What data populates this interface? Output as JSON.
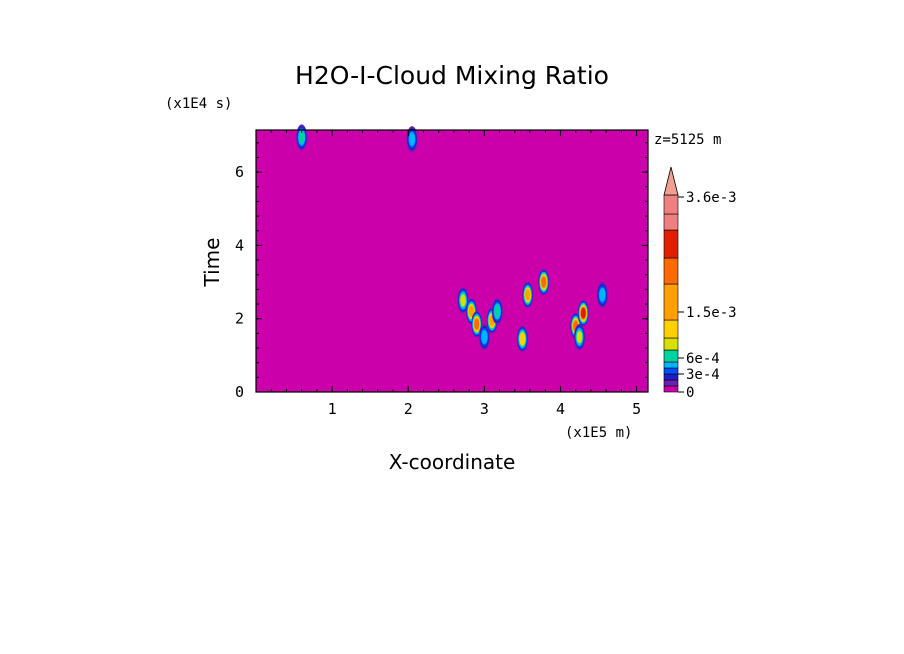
{
  "chart_data": {
    "type": "heatmap",
    "title": "H2O-I-Cloud Mixing Ratio",
    "xlabel": "X-coordinate",
    "ylabel": "Time",
    "x_unit_label": "(x1E5 m)",
    "y_unit_label": "(x1E4 s)",
    "level_label": "z=5125 m",
    "xlim": [
      0,
      5.15
    ],
    "ylim": [
      0,
      7.15
    ],
    "x_ticks": [
      1,
      2,
      3,
      4,
      5
    ],
    "y_ticks": [
      0,
      2,
      4,
      6
    ],
    "x_tick_labels": [
      "1",
      "2",
      "3",
      "4",
      "5"
    ],
    "y_tick_labels": [
      "0",
      "2",
      "4",
      "6"
    ],
    "background_value": 0,
    "colorbar": {
      "levels": [
        0,
        0.0001,
        0.0002,
        0.0003,
        0.0004,
        0.0005,
        0.0006,
        0.0009,
        0.0012,
        0.0015,
        0.0018,
        0.0024,
        0.003,
        0.0036
      ],
      "colors": [
        "#cc00aa",
        "#6a1fb5",
        "#1f1fc8",
        "#0050ff",
        "#00b4ff",
        "#00d2a0",
        "#d8e000",
        "#ffd000",
        "#ffa000",
        "#ff6a00",
        "#e02000",
        "#ef8080",
        "#ef8080",
        "#f0a090"
      ],
      "labels": [
        "0",
        "3e-4",
        "6e-4",
        "1.5e-3",
        "3.6e-3"
      ],
      "label_values": [
        0,
        0.0003,
        0.0006,
        0.0015,
        0.0036
      ],
      "extend": "max"
    },
    "features": [
      {
        "x": 0.6,
        "y": 6.95,
        "value": 0.0005
      },
      {
        "x": 2.05,
        "y": 6.9,
        "value": 0.0004
      },
      {
        "x": 2.72,
        "y": 2.5,
        "value": 0.0006
      },
      {
        "x": 2.83,
        "y": 2.2,
        "value": 0.0012
      },
      {
        "x": 2.9,
        "y": 1.85,
        "value": 0.0015
      },
      {
        "x": 3.0,
        "y": 1.5,
        "value": 0.0004
      },
      {
        "x": 3.1,
        "y": 1.95,
        "value": 0.0012
      },
      {
        "x": 3.17,
        "y": 2.2,
        "value": 0.0005
      },
      {
        "x": 3.5,
        "y": 1.45,
        "value": 0.0009
      },
      {
        "x": 3.57,
        "y": 2.65,
        "value": 0.0012
      },
      {
        "x": 3.78,
        "y": 3.0,
        "value": 0.0015
      },
      {
        "x": 4.2,
        "y": 1.8,
        "value": 0.0015
      },
      {
        "x": 4.3,
        "y": 2.15,
        "value": 0.0018
      },
      {
        "x": 4.25,
        "y": 1.5,
        "value": 0.0006
      },
      {
        "x": 4.55,
        "y": 2.65,
        "value": 0.0004
      }
    ]
  }
}
